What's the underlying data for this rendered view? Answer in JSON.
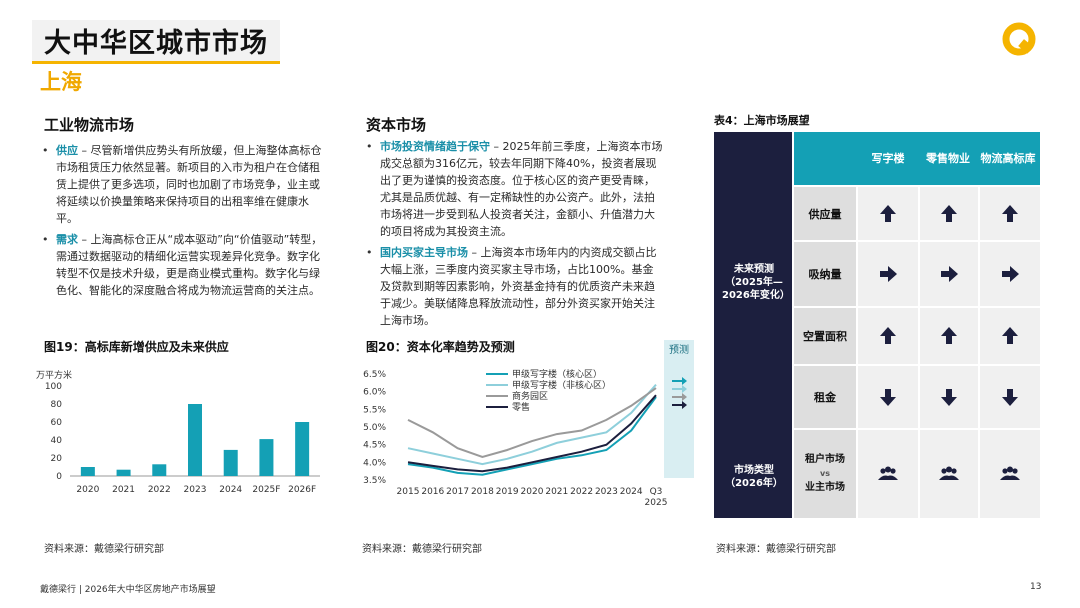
{
  "header": {
    "title": "大中华区城市市场",
    "subtitle": "上海"
  },
  "logo_icon": "q-logo-icon",
  "logistics": {
    "title": "工业物流市场",
    "bullets": [
      {
        "keyword": "供应",
        "text": " – 尽管新增供应势头有所放缓，但上海整体高标仓市场租赁压力依然显著。新项目的入市为租户在仓储租赁上提供了更多选项，同时也加剧了市场竞争，业主或将延续以价换量策略来保持项目的出租率维在健康水平。"
      },
      {
        "keyword": "需求",
        "text": " – 上海高标仓正从“成本驱动”向“价值驱动”转型，需通过数据驱动的精细化运营实现差异化竞争。数字化转型不仅是技术升级，更是商业模式重构。数字化与绿色化、智能化的深度融合将成为物流运营商的关注点。"
      }
    ],
    "fig_title": "图19：高标库新增供应及未来供应",
    "source": "资料来源：戴德梁行研究部"
  },
  "capital": {
    "title": "资本市场",
    "bullets": [
      {
        "keyword": "市场投资情绪趋于保守",
        "text": " – 2025年前三季度，上海资本市场成交总额为316亿元，较去年同期下降40%，投资者展现出了更为谨慎的投资态度。位于核心区的资产更受青睐，尤其是品质优越、有一定稀缺性的办公资产。此外，法拍市场将进一步受到私人投资者关注，金额小、升值潜力大的项目将成为其投资主流。"
      },
      {
        "keyword": "国内买家主导市场",
        "text": " – 上海资本市场年内的内资成交额占比大幅上涨，三季度内资买家主导市场，占比100%。基金及贷款到期等因素影响，外资基金持有的优质资产未来趋于减少。美联储降息释放流动性，部分外资买家开始关注上海市场。"
      }
    ],
    "fig_title": "图20：资本化率趋势及预测",
    "forecast_label": "预测",
    "source": "资料来源：戴德梁行研究部"
  },
  "chart_data": [
    {
      "type": "bar",
      "title": "图19：高标库新增供应及未来供应",
      "ylabel": "万平方米",
      "categories": [
        "2020",
        "2021",
        "2022",
        "2023",
        "2024",
        "2025F",
        "2026F"
      ],
      "values": [
        10,
        7,
        13,
        80,
        29,
        41,
        60
      ],
      "ylim": [
        0,
        100
      ],
      "yticks": [
        "0",
        "20",
        "40",
        "60",
        "80",
        "100"
      ],
      "color": "#14a0b5"
    },
    {
      "type": "line",
      "title": "图20：资本化率趋势及预测",
      "x": [
        "2015",
        "2016",
        "2017",
        "2018",
        "2019",
        "2020",
        "2021",
        "2022",
        "2023",
        "2024",
        "Q3 2025"
      ],
      "ylim": [
        3.5,
        6.5
      ],
      "yticks": [
        "3.5%",
        "4.0%",
        "4.5%",
        "5.0%",
        "5.5%",
        "6.0%",
        "6.5%"
      ],
      "series": [
        {
          "name": "甲级写字楼（核心区）",
          "color": "#14a0b5",
          "values": [
            3.95,
            3.85,
            3.7,
            3.65,
            3.8,
            3.95,
            4.1,
            4.2,
            4.35,
            4.9,
            5.85
          ]
        },
        {
          "name": "甲级写字楼（非核心区）",
          "color": "#8ecfdb",
          "values": [
            4.4,
            4.25,
            4.1,
            3.95,
            4.1,
            4.3,
            4.55,
            4.7,
            4.85,
            5.4,
            6.2
          ]
        },
        {
          "name": "商务园区",
          "color": "#9a9a9a",
          "values": [
            5.2,
            4.85,
            4.4,
            4.15,
            4.35,
            4.6,
            4.8,
            4.9,
            5.2,
            5.6,
            6.1
          ]
        },
        {
          "name": "零售",
          "color": "#1c1f3e",
          "values": [
            4.0,
            3.9,
            3.8,
            3.75,
            3.85,
            4.0,
            4.15,
            4.3,
            4.5,
            5.1,
            5.9
          ]
        }
      ]
    }
  ],
  "outlook": {
    "title": "表4：上海市场展望",
    "columns": [
      "写字楼",
      "零售物业",
      "物流高标库"
    ],
    "group_label": "未来预测（2025年—2026年变化）",
    "rows": [
      {
        "label": "供应量",
        "icons": [
          "arrow-up-icon",
          "arrow-up-icon",
          "arrow-up-icon"
        ]
      },
      {
        "label": "吸纳量",
        "icons": [
          "arrow-right-icon",
          "arrow-right-icon",
          "arrow-right-icon"
        ]
      },
      {
        "label": "空置面积",
        "icons": [
          "arrow-up-icon",
          "arrow-up-icon",
          "arrow-up-icon"
        ]
      },
      {
        "label": "租金",
        "icons": [
          "arrow-down-icon",
          "arrow-down-icon",
          "arrow-down-icon"
        ]
      }
    ],
    "market_type_label": "市场类型（2026年）",
    "market_type_tenant": "租户市场",
    "market_type_vs": "vs",
    "market_type_landlord": "业主市场",
    "market_icons": [
      "people-group-icon",
      "people-group-icon",
      "people-group-icon"
    ],
    "source": "资料来源：戴德梁行研究部"
  },
  "footer": {
    "left": "戴德梁行 | 2026年大中华区房地产市场展望",
    "page": "13"
  }
}
